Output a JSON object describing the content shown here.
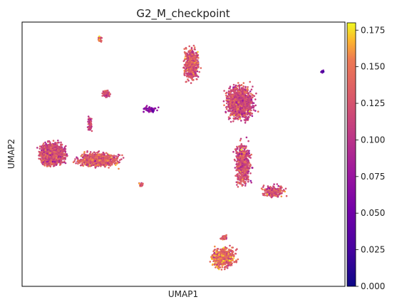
{
  "chart_data": {
    "type": "scatter",
    "title": "G2_M_checkpoint",
    "xlabel": "UMAP1",
    "ylabel": "UMAP2",
    "x_ticks_visible": false,
    "y_ticks_visible": false,
    "grid": false,
    "xlim": [
      0,
      100
    ],
    "ylim": [
      0,
      100
    ],
    "colormap": "plasma",
    "colorbar": {
      "range": [
        0.0,
        0.18
      ],
      "ticks": [
        0.0,
        0.025,
        0.05,
        0.075,
        0.1,
        0.125,
        0.15,
        0.175
      ],
      "tick_labels": [
        "0.000",
        "0.025",
        "0.050",
        "0.075",
        "0.100",
        "0.125",
        "0.150",
        "0.175"
      ]
    },
    "clusters": [
      {
        "x": [
          4,
          15
        ],
        "y": [
          44,
          56
        ],
        "value": 0.12,
        "density": 2600
      },
      {
        "x": [
          14,
          33
        ],
        "y": [
          44,
          52
        ],
        "value": 0.13,
        "density": 900
      },
      {
        "x": [
          20,
          22
        ],
        "y": [
          57,
          66
        ],
        "value": 0.12,
        "density": 60
      },
      {
        "x": [
          24,
          28
        ],
        "y": [
          71,
          75
        ],
        "value": 0.12,
        "density": 70
      },
      {
        "x": [
          23,
          25
        ],
        "y": [
          92,
          95
        ],
        "value": 0.14,
        "density": 30
      },
      {
        "x": [
          36,
          43
        ],
        "y": [
          65,
          69
        ],
        "value": 0.06,
        "density": 60
      },
      {
        "x": [
          49,
          56
        ],
        "y": [
          75,
          93
        ],
        "value": 0.13,
        "density": 700
      },
      {
        "x": [
          61,
          74
        ],
        "y": [
          60,
          79
        ],
        "value": 0.12,
        "density": 1300
      },
      {
        "x": [
          65,
          72
        ],
        "y": [
          34,
          58
        ],
        "value": 0.12,
        "density": 700
      },
      {
        "x": [
          72,
          84
        ],
        "y": [
          32,
          40
        ],
        "value": 0.12,
        "density": 220
      },
      {
        "x": [
          57,
          68
        ],
        "y": [
          5,
          17
        ],
        "value": 0.14,
        "density": 600
      },
      {
        "x": [
          61,
          64
        ],
        "y": [
          17,
          20
        ],
        "value": 0.13,
        "density": 40
      },
      {
        "x": [
          36,
          38
        ],
        "y": [
          37,
          40
        ],
        "value": 0.14,
        "density": 20
      },
      {
        "x": [
          92,
          94
        ],
        "y": [
          80,
          82
        ],
        "value": 0.04,
        "density": 8
      }
    ]
  }
}
